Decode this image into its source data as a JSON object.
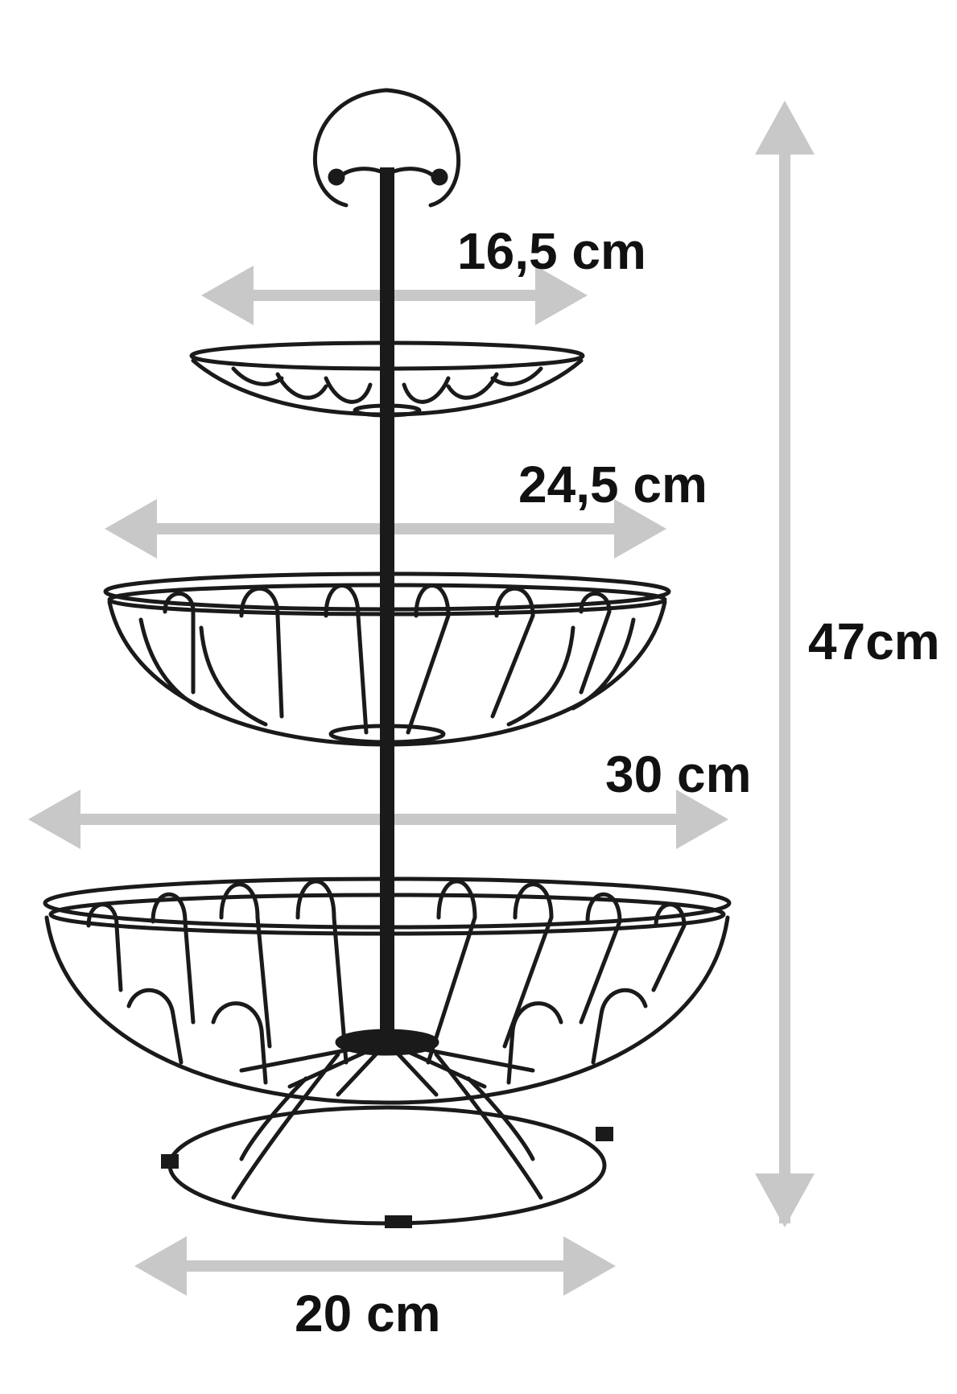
{
  "labels": {
    "top_tier_width": "16,5 cm",
    "middle_tier_width": "24,5 cm",
    "bottom_tier_width": "30 cm",
    "base_width": "20 cm",
    "total_height": "47cm"
  },
  "colors": {
    "arrow": "#c8c8c8",
    "wire": "#1a1a1a",
    "text": "#111111",
    "background": "#ffffff"
  }
}
